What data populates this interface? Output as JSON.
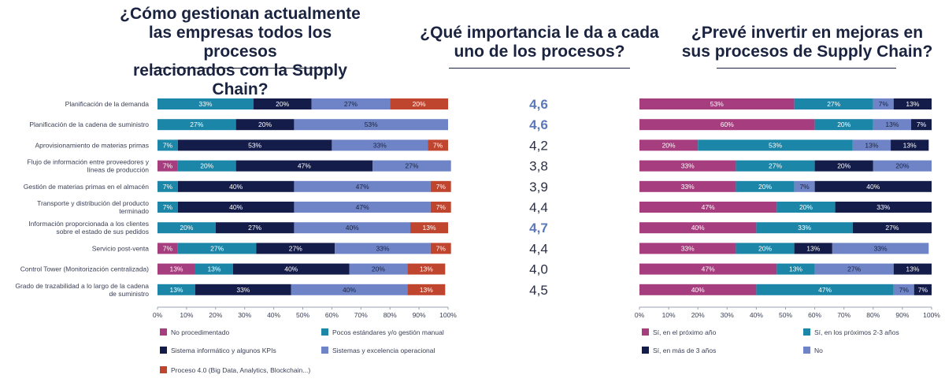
{
  "titles": {
    "left": [
      "¿Cómo gestionan actualmente",
      "las empresas todos los procesos",
      "relacionados con la Supply Chain?"
    ],
    "middle": [
      "¿Qué importancia le da a cada",
      "uno de los procesos?"
    ],
    "right": [
      "¿Prevé invertir en mejoras en",
      "sus procesos de Supply Chain?"
    ]
  },
  "colors": {
    "magenta": "#a63d7e",
    "teal": "#1b86a8",
    "navy": "#141c4a",
    "lightblue": "#6f84c6",
    "red": "#c0452e",
    "highlight": "#5b78b8",
    "normal": "#2a2e44"
  },
  "chart_data": [
    {
      "type": "bar",
      "orientation": "horizontal-stacked",
      "categories": [
        [
          "Planificación de la demanda"
        ],
        [
          "Planificación de la cadena de suministro"
        ],
        [
          "Aprovisionamiento de materias primas"
        ],
        [
          "Flujo de información entre proveedores y",
          "líneas de producción"
        ],
        [
          "Gestión de materias primas en el almacén"
        ],
        [
          "Transporte y distribución del producto",
          "terminado"
        ],
        [
          "Información proporcionada a los clientes",
          "sobre el estado de sus pedidos"
        ],
        [
          "Servicio post-venta"
        ],
        [
          "Control Tower (Monitorización centralizada)"
        ],
        [
          "Grado de trazabilidad a lo largo de la cadena",
          "de suministro"
        ]
      ],
      "series": [
        {
          "name": "No procedimentado",
          "color": "magenta",
          "values": [
            0,
            0,
            0,
            7,
            0,
            0,
            0,
            7,
            13,
            0
          ]
        },
        {
          "name": "Pocos estándares y/o gestión manual",
          "color": "teal",
          "values": [
            33,
            27,
            7,
            20,
            7,
            7,
            20,
            27,
            13,
            13
          ]
        },
        {
          "name": "Sistema informático y algunos KPIs",
          "color": "navy",
          "values": [
            20,
            20,
            53,
            47,
            40,
            40,
            27,
            27,
            40,
            33
          ]
        },
        {
          "name": "Sistemas y excelencia operacional",
          "color": "lightblue",
          "values": [
            27,
            53,
            33,
            27,
            47,
            47,
            40,
            33,
            20,
            40
          ]
        },
        {
          "name": "Proceso 4.0 (Big Data, Analytics, Blockchain...)",
          "color": "red",
          "values": [
            20,
            0,
            7,
            0,
            7,
            7,
            13,
            7,
            13,
            13
          ]
        }
      ],
      "bar_lengths": [
        [
          0,
          33,
          20,
          27,
          20
        ],
        [
          0,
          27,
          20,
          53,
          0
        ],
        [
          0,
          7,
          53,
          33,
          7
        ],
        [
          7,
          20,
          47,
          27,
          0
        ],
        [
          0,
          7,
          40,
          47,
          7
        ],
        [
          0,
          7,
          40,
          47,
          7
        ],
        [
          0,
          20,
          27,
          40,
          13
        ],
        [
          7,
          27,
          27,
          33,
          7
        ],
        [
          13,
          13,
          40,
          20,
          13
        ],
        [
          0,
          13,
          33,
          40,
          13
        ]
      ],
      "xlim": [
        0,
        100
      ],
      "xticks": [
        "0%",
        "10%",
        "20%",
        "30%",
        "40%",
        "50%",
        "60%",
        "70%",
        "80%",
        "90%",
        "100%"
      ],
      "legend": "bottom"
    },
    {
      "type": "table",
      "values": [
        "4,6",
        "4,6",
        "4,2",
        "3,8",
        "3,9",
        "4,4",
        "4,7",
        "4,4",
        "4,0",
        "4,5"
      ],
      "highlighted": [
        true,
        true,
        false,
        false,
        false,
        false,
        true,
        false,
        false,
        false
      ]
    },
    {
      "type": "bar",
      "orientation": "horizontal-stacked",
      "series": [
        {
          "name": "Sí, en el próximo año",
          "color": "magenta",
          "values": [
            53,
            60,
            20,
            33,
            33,
            47,
            40,
            33,
            47,
            40
          ]
        },
        {
          "name": "Sí, en los próximos 2-3 años",
          "color": "teal",
          "values": [
            27,
            20,
            53,
            27,
            20,
            20,
            33,
            20,
            13,
            47
          ]
        },
        {
          "name": "Sí, en más de 3 años",
          "color": "navy",
          "values": [
            13,
            7,
            13,
            20,
            40,
            33,
            27,
            13,
            13,
            7
          ]
        },
        {
          "name": "No",
          "color": "lightblue",
          "values": [
            7,
            13,
            13,
            20,
            7,
            0,
            0,
            33,
            27,
            7
          ]
        }
      ],
      "segment_order": [
        [
          "magenta",
          "teal",
          "lightblue",
          "navy"
        ],
        [
          "magenta",
          "teal",
          "lightblue",
          "navy"
        ],
        [
          "magenta",
          "teal",
          "lightblue",
          "navy"
        ],
        [
          "magenta",
          "teal",
          "navy",
          "lightblue"
        ],
        [
          "magenta",
          "teal",
          "lightblue",
          "navy"
        ],
        [
          "magenta",
          "teal",
          "navy"
        ],
        [
          "magenta",
          "teal",
          "navy"
        ],
        [
          "magenta",
          "teal",
          "navy",
          "lightblue"
        ],
        [
          "magenta",
          "teal",
          "lightblue",
          "navy"
        ],
        [
          "magenta",
          "teal",
          "lightblue",
          "navy"
        ]
      ],
      "segment_values": [
        [
          53,
          27,
          7,
          13
        ],
        [
          60,
          20,
          13,
          7
        ],
        [
          20,
          53,
          13,
          13
        ],
        [
          33,
          27,
          20,
          20
        ],
        [
          33,
          20,
          7,
          40
        ],
        [
          47,
          20,
          33
        ],
        [
          40,
          33,
          27
        ],
        [
          33,
          20,
          13,
          33
        ],
        [
          47,
          13,
          27,
          13
        ],
        [
          40,
          47,
          7,
          7
        ]
      ],
      "xlim": [
        0,
        100
      ],
      "xticks": [
        "0%",
        "10%",
        "20%",
        "30%",
        "40%",
        "50%",
        "60%",
        "70%",
        "80%",
        "90%",
        "100%"
      ],
      "legend": "bottom"
    }
  ]
}
